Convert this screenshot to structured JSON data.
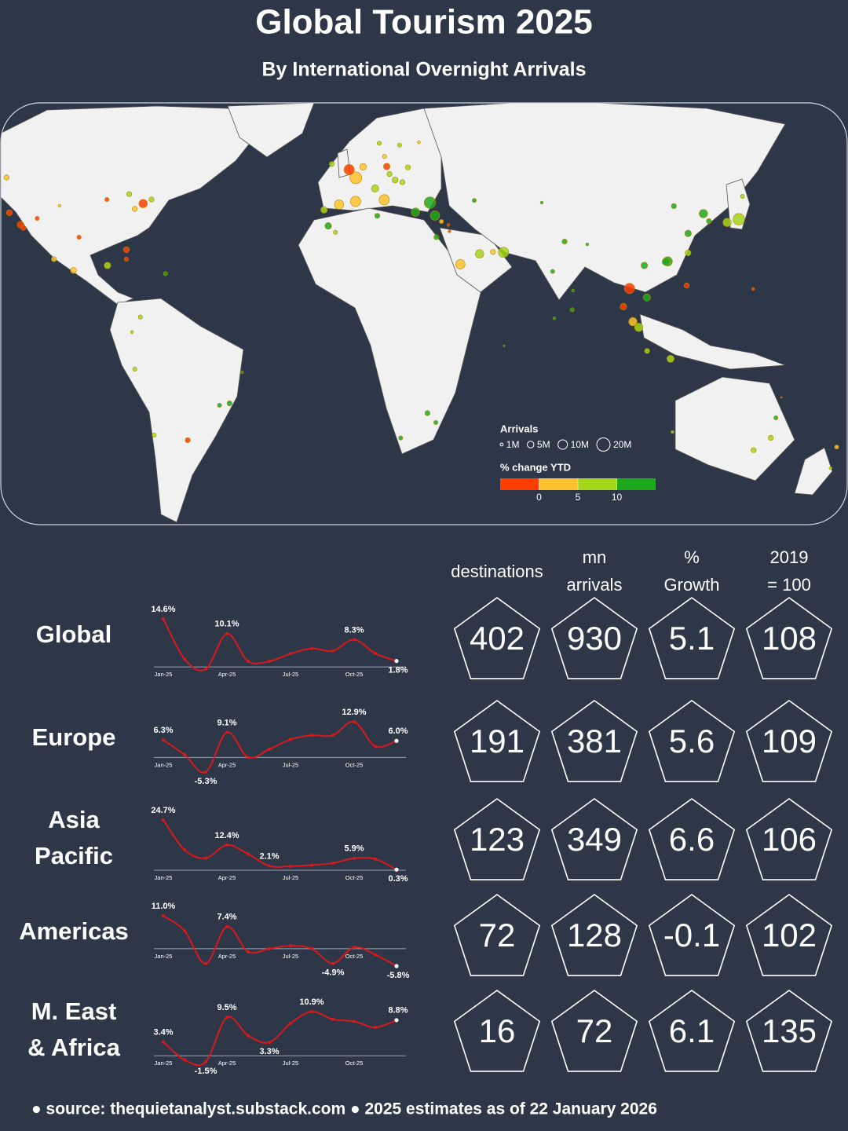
{
  "header": {
    "title": "Global Tourism 2025",
    "subtitle": "By International Overnight Arrivals"
  },
  "map": {
    "legend": {
      "size_title": "Arrivals",
      "sizes": [
        {
          "value": 1,
          "label": "1M"
        },
        {
          "value": 5,
          "label": "5M"
        },
        {
          "value": 10,
          "label": "10M"
        },
        {
          "value": 20,
          "label": "20M"
        }
      ],
      "color_title": "% change YTD",
      "breaks": [
        0,
        5,
        10
      ],
      "colors": [
        "#ff3d00",
        "#ffc22e",
        "#a4d61a",
        "#1ea81e"
      ]
    },
    "bubbles": [
      {
        "lon": -122,
        "lat": 37.8,
        "arrivals": 4,
        "change": -3
      },
      {
        "lon": -118,
        "lat": 34,
        "arrivals": 5,
        "change": -2
      },
      {
        "lon": -117,
        "lat": 33,
        "arrivals": 3,
        "change": -4
      },
      {
        "lon": -112,
        "lat": 36,
        "arrivals": 2,
        "change": -2
      },
      {
        "lon": -104,
        "lat": 40,
        "arrivals": 1,
        "change": 3
      },
      {
        "lon": -97,
        "lat": 30,
        "arrivals": 2,
        "change": -1
      },
      {
        "lon": -87,
        "lat": 42,
        "arrivals": 2,
        "change": -3
      },
      {
        "lon": -80,
        "lat": 26,
        "arrivals": 4,
        "change": -1
      },
      {
        "lon": -74,
        "lat": 40.7,
        "arrivals": 8,
        "change": -4
      },
      {
        "lon": -77,
        "lat": 39,
        "arrivals": 3,
        "change": 2
      },
      {
        "lon": -71,
        "lat": 42,
        "arrivals": 3,
        "change": 6
      },
      {
        "lon": -79,
        "lat": 43.7,
        "arrivals": 3,
        "change": 8
      },
      {
        "lon": -123,
        "lat": 49,
        "arrivals": 3,
        "change": 1
      },
      {
        "lon": -99,
        "lat": 19.4,
        "arrivals": 4,
        "change": 3
      },
      {
        "lon": -86.8,
        "lat": 21,
        "arrivals": 5,
        "change": 8
      },
      {
        "lon": -106,
        "lat": 23,
        "arrivals": 3,
        "change": 1
      },
      {
        "lon": -66,
        "lat": 18.4,
        "arrivals": 2,
        "change": 12
      },
      {
        "lon": -80,
        "lat": 23,
        "arrivals": 2,
        "change": -2
      },
      {
        "lon": -75,
        "lat": 4.6,
        "arrivals": 2,
        "change": 6
      },
      {
        "lon": -78,
        "lat": -0.2,
        "arrivals": 1,
        "change": 8
      },
      {
        "lon": -77,
        "lat": -12,
        "arrivals": 2,
        "change": 5
      },
      {
        "lon": -70,
        "lat": -33,
        "arrivals": 2,
        "change": 9
      },
      {
        "lon": -58,
        "lat": -34.6,
        "arrivals": 3,
        "change": -3
      },
      {
        "lon": -43,
        "lat": -22.9,
        "arrivals": 3,
        "change": 14
      },
      {
        "lon": -46.6,
        "lat": -23.5,
        "arrivals": 2,
        "change": 12
      },
      {
        "lon": -38.5,
        "lat": -13,
        "arrivals": 1,
        "change": 11
      },
      {
        "lon": -3.7,
        "lat": 40.4,
        "arrivals": 10,
        "change": 3
      },
      {
        "lon": 2.2,
        "lat": 41.4,
        "arrivals": 12,
        "change": 4
      },
      {
        "lon": -9.1,
        "lat": 38.7,
        "arrivals": 5,
        "change": 5
      },
      {
        "lon": 2.3,
        "lat": 48.9,
        "arrivals": 16,
        "change": 2
      },
      {
        "lon": -0.1,
        "lat": 51.5,
        "arrivals": 12,
        "change": -1
      },
      {
        "lon": 4.9,
        "lat": 52.4,
        "arrivals": 5,
        "change": 2
      },
      {
        "lon": 13.4,
        "lat": 52.5,
        "arrivals": 5,
        "change": -1
      },
      {
        "lon": 12.5,
        "lat": 41.9,
        "arrivals": 12,
        "change": 4
      },
      {
        "lon": 9.2,
        "lat": 45.5,
        "arrivals": 6,
        "change": 6
      },
      {
        "lon": 16.4,
        "lat": 48.2,
        "arrivals": 4,
        "change": 7
      },
      {
        "lon": 14.4,
        "lat": 50.1,
        "arrivals": 3,
        "change": 8
      },
      {
        "lon": 23.7,
        "lat": 38,
        "arrivals": 8,
        "change": 10
      },
      {
        "lon": 28.9,
        "lat": 41,
        "arrivals": 15,
        "change": 11
      },
      {
        "lon": 30.7,
        "lat": 36.9,
        "arrivals": 10,
        "change": 12
      },
      {
        "lon": 19,
        "lat": 47.5,
        "arrivals": 3,
        "change": 7
      },
      {
        "lon": 21,
        "lat": 52.2,
        "arrivals": 3,
        "change": 8
      },
      {
        "lon": 10.7,
        "lat": 59.9,
        "arrivals": 2,
        "change": 5
      },
      {
        "lon": 18,
        "lat": 59.3,
        "arrivals": 2,
        "change": 6
      },
      {
        "lon": 24.9,
        "lat": 60.2,
        "arrivals": 1,
        "change": 3
      },
      {
        "lon": 12.6,
        "lat": 55.7,
        "arrivals": 2,
        "change": 4
      },
      {
        "lon": -6.3,
        "lat": 53.3,
        "arrivals": 3,
        "change": 5
      },
      {
        "lon": 33,
        "lat": 35,
        "arrivals": 2,
        "change": 3
      },
      {
        "lon": 35.5,
        "lat": 33.9,
        "arrivals": 1,
        "change": -5
      },
      {
        "lon": 39.8,
        "lat": 21.4,
        "arrivals": 10,
        "change": 4
      },
      {
        "lon": 46.7,
        "lat": 24.7,
        "arrivals": 8,
        "change": 5
      },
      {
        "lon": 55.3,
        "lat": 25.2,
        "arrivals": 12,
        "change": 6
      },
      {
        "lon": 51.5,
        "lat": 25.3,
        "arrivals": 3,
        "change": 4
      },
      {
        "lon": 31.2,
        "lat": 30,
        "arrivals": 3,
        "change": 12
      },
      {
        "lon": 35.9,
        "lat": 31.9,
        "arrivals": 1,
        "change": -2
      },
      {
        "lon": -7.6,
        "lat": 33.6,
        "arrivals": 5,
        "change": 11
      },
      {
        "lon": -5,
        "lat": 31.6,
        "arrivals": 2,
        "change": 9
      },
      {
        "lon": 10,
        "lat": 36.8,
        "arrivals": 3,
        "change": 10
      },
      {
        "lon": 18.4,
        "lat": -33.9,
        "arrivals": 2,
        "change": 12
      },
      {
        "lon": 28,
        "lat": -26,
        "arrivals": 3,
        "change": 13
      },
      {
        "lon": 31,
        "lat": -29,
        "arrivals": 2,
        "change": 11
      },
      {
        "lon": 55.5,
        "lat": -4.6,
        "arrivals": 0.4,
        "change": 15
      },
      {
        "lon": 100.5,
        "lat": 13.7,
        "arrivals": 12,
        "change": -6
      },
      {
        "lon": 98.3,
        "lat": 7.9,
        "arrivals": 5,
        "change": -4
      },
      {
        "lon": 101.7,
        "lat": 3.1,
        "arrivals": 8,
        "change": 4
      },
      {
        "lon": 103.8,
        "lat": 1.3,
        "arrivals": 8,
        "change": 6
      },
      {
        "lon": 115.2,
        "lat": -8.7,
        "arrivals": 6,
        "change": 7
      },
      {
        "lon": 106.8,
        "lat": -6.2,
        "arrivals": 3,
        "change": 9
      },
      {
        "lon": 106.7,
        "lat": 10.8,
        "arrivals": 6,
        "change": 14
      },
      {
        "lon": 105.8,
        "lat": 21,
        "arrivals": 5,
        "change": 16
      },
      {
        "lon": 114.2,
        "lat": 22.3,
        "arrivals": 10,
        "change": 11
      },
      {
        "lon": 113.5,
        "lat": 22.2,
        "arrivals": 6,
        "change": 10
      },
      {
        "lon": 121.5,
        "lat": 25,
        "arrivals": 4,
        "change": 9
      },
      {
        "lon": 121.5,
        "lat": 31.2,
        "arrivals": 5,
        "change": 12
      },
      {
        "lon": 116.4,
        "lat": 39.9,
        "arrivals": 3,
        "change": 14
      },
      {
        "lon": 127,
        "lat": 37.5,
        "arrivals": 8,
        "change": 13
      },
      {
        "lon": 129,
        "lat": 35.1,
        "arrivals": 3,
        "change": 12
      },
      {
        "lon": 139.7,
        "lat": 35.7,
        "arrivals": 15,
        "change": 6
      },
      {
        "lon": 135.5,
        "lat": 34.7,
        "arrivals": 8,
        "change": 5
      },
      {
        "lon": 141,
        "lat": 43,
        "arrivals": 2,
        "change": 7
      },
      {
        "lon": 121,
        "lat": 14.6,
        "arrivals": 3,
        "change": -2
      },
      {
        "lon": 77.2,
        "lat": 28.6,
        "arrivals": 3,
        "change": 10
      },
      {
        "lon": 72.9,
        "lat": 19.1,
        "arrivals": 2,
        "change": 12
      },
      {
        "lon": 80.2,
        "lat": 13,
        "arrivals": 1,
        "change": 11
      },
      {
        "lon": 79.9,
        "lat": 6.9,
        "arrivals": 2,
        "change": 15
      },
      {
        "lon": 85.3,
        "lat": 27.7,
        "arrivals": 1,
        "change": 11
      },
      {
        "lon": 73.5,
        "lat": 4.2,
        "arrivals": 1,
        "change": 13
      },
      {
        "lon": 69,
        "lat": 41,
        "arrivals": 1,
        "change": 13
      },
      {
        "lon": 44.8,
        "lat": 41.7,
        "arrivals": 2,
        "change": 12
      },
      {
        "lon": 144.8,
        "lat": 13.5,
        "arrivals": 1,
        "change": -5
      },
      {
        "lon": 151.2,
        "lat": -33.9,
        "arrivals": 3,
        "change": 8
      },
      {
        "lon": 145,
        "lat": -37.8,
        "arrivals": 3,
        "change": 6
      },
      {
        "lon": 153,
        "lat": -27.5,
        "arrivals": 2,
        "change": 10
      },
      {
        "lon": 115.9,
        "lat": -32,
        "arrivals": 1,
        "change": 9
      },
      {
        "lon": 174.8,
        "lat": -36.8,
        "arrivals": 2,
        "change": 4
      },
      {
        "lon": 172.6,
        "lat": -43.5,
        "arrivals": 1,
        "change": 8
      },
      {
        "lon": 155,
        "lat": -21,
        "arrivals": 0.3,
        "change": -8
      }
    ]
  },
  "chart_data": [
    {
      "type": "line",
      "color": "#d8181c",
      "categories": [
        "Jan-25",
        null,
        null,
        "Apr-25",
        null,
        null,
        "Jul-25",
        null,
        null,
        "Oct-25",
        null,
        null
      ],
      "values": [
        14.6,
        2.4,
        -0.7,
        10.1,
        1.7,
        1.7,
        4,
        5.6,
        4.9,
        8.3,
        4.1,
        1.8
      ],
      "value_labels": [
        "14.6%",
        null,
        null,
        "10.1%",
        null,
        null,
        null,
        null,
        null,
        "8.3%",
        null,
        "1.8%"
      ]
    },
    {
      "type": "line",
      "color": "#d8181c",
      "categories": [
        "Jan-25",
        null,
        null,
        "Apr-25",
        null,
        null,
        "Jul-25",
        null,
        null,
        "Oct-25",
        null,
        null
      ],
      "values": [
        6.3,
        1,
        -5.3,
        9.1,
        0,
        3,
        6.5,
        8,
        8,
        12.9,
        4,
        6.0
      ],
      "value_labels": [
        "6.3%",
        null,
        "-5.3%",
        "9.1%",
        null,
        null,
        null,
        null,
        null,
        "12.9%",
        null,
        "6.0%"
      ]
    },
    {
      "type": "line",
      "color": "#d8181c",
      "categories": [
        "Jan-25",
        null,
        null,
        "Apr-25",
        null,
        null,
        "Jul-25",
        null,
        null,
        "Oct-25",
        null,
        null
      ],
      "values": [
        24.7,
        10,
        6,
        12.4,
        8,
        2.1,
        2,
        2.5,
        3.5,
        5.9,
        5.5,
        0.3
      ],
      "value_labels": [
        "24.7%",
        null,
        null,
        "12.4%",
        null,
        "2.1%",
        null,
        null,
        null,
        "5.9%",
        null,
        "0.3%"
      ]
    },
    {
      "type": "line",
      "color": "#d8181c",
      "categories": [
        "Jan-25",
        null,
        null,
        "Apr-25",
        null,
        null,
        "Jul-25",
        null,
        null,
        "Oct-25",
        null,
        null
      ],
      "values": [
        11.0,
        6,
        -5,
        7.4,
        -1,
        0,
        1,
        0,
        -4.9,
        0.5,
        -2,
        -5.8
      ],
      "value_labels": [
        "11.0%",
        null,
        null,
        "7.4%",
        null,
        null,
        null,
        null,
        "-4.9%",
        null,
        null,
        "-5.8%"
      ]
    },
    {
      "type": "line",
      "color": "#d8181c",
      "categories": [
        "Jan-25",
        null,
        null,
        "Apr-25",
        null,
        null,
        "Jul-25",
        null,
        null,
        "Oct-25",
        null,
        null
      ],
      "values": [
        3.4,
        -1,
        -1.5,
        9.5,
        5,
        3.3,
        8,
        10.9,
        9,
        8.5,
        7,
        8.8
      ],
      "value_labels": [
        "3.4%",
        null,
        "-1.5%",
        "9.5%",
        null,
        "3.3%",
        null,
        "10.9%",
        null,
        null,
        null,
        "8.8%"
      ]
    }
  ],
  "table": {
    "headers": [
      [
        "destinations"
      ],
      [
        "mn",
        "arrivals"
      ],
      [
        "%",
        "Growth"
      ],
      [
        "2019",
        "= 100"
      ]
    ],
    "rows": [
      {
        "region": [
          "Global"
        ],
        "stats": [
          402,
          930,
          5.1,
          108
        ]
      },
      {
        "region": [
          "Europe"
        ],
        "stats": [
          191,
          381,
          5.6,
          109
        ]
      },
      {
        "region": [
          "Asia",
          "Pacific"
        ],
        "stats": [
          123,
          349,
          6.6,
          106
        ]
      },
      {
        "region": [
          "Americas"
        ],
        "stats": [
          72,
          128,
          -0.1,
          102
        ]
      },
      {
        "region": [
          "M. East",
          "& Africa"
        ],
        "stats": [
          16,
          72,
          6.1,
          135
        ]
      }
    ]
  },
  "footer": "● source: thequietanalyst.substack.com ● 2025 estimates as of 22 January 2026"
}
